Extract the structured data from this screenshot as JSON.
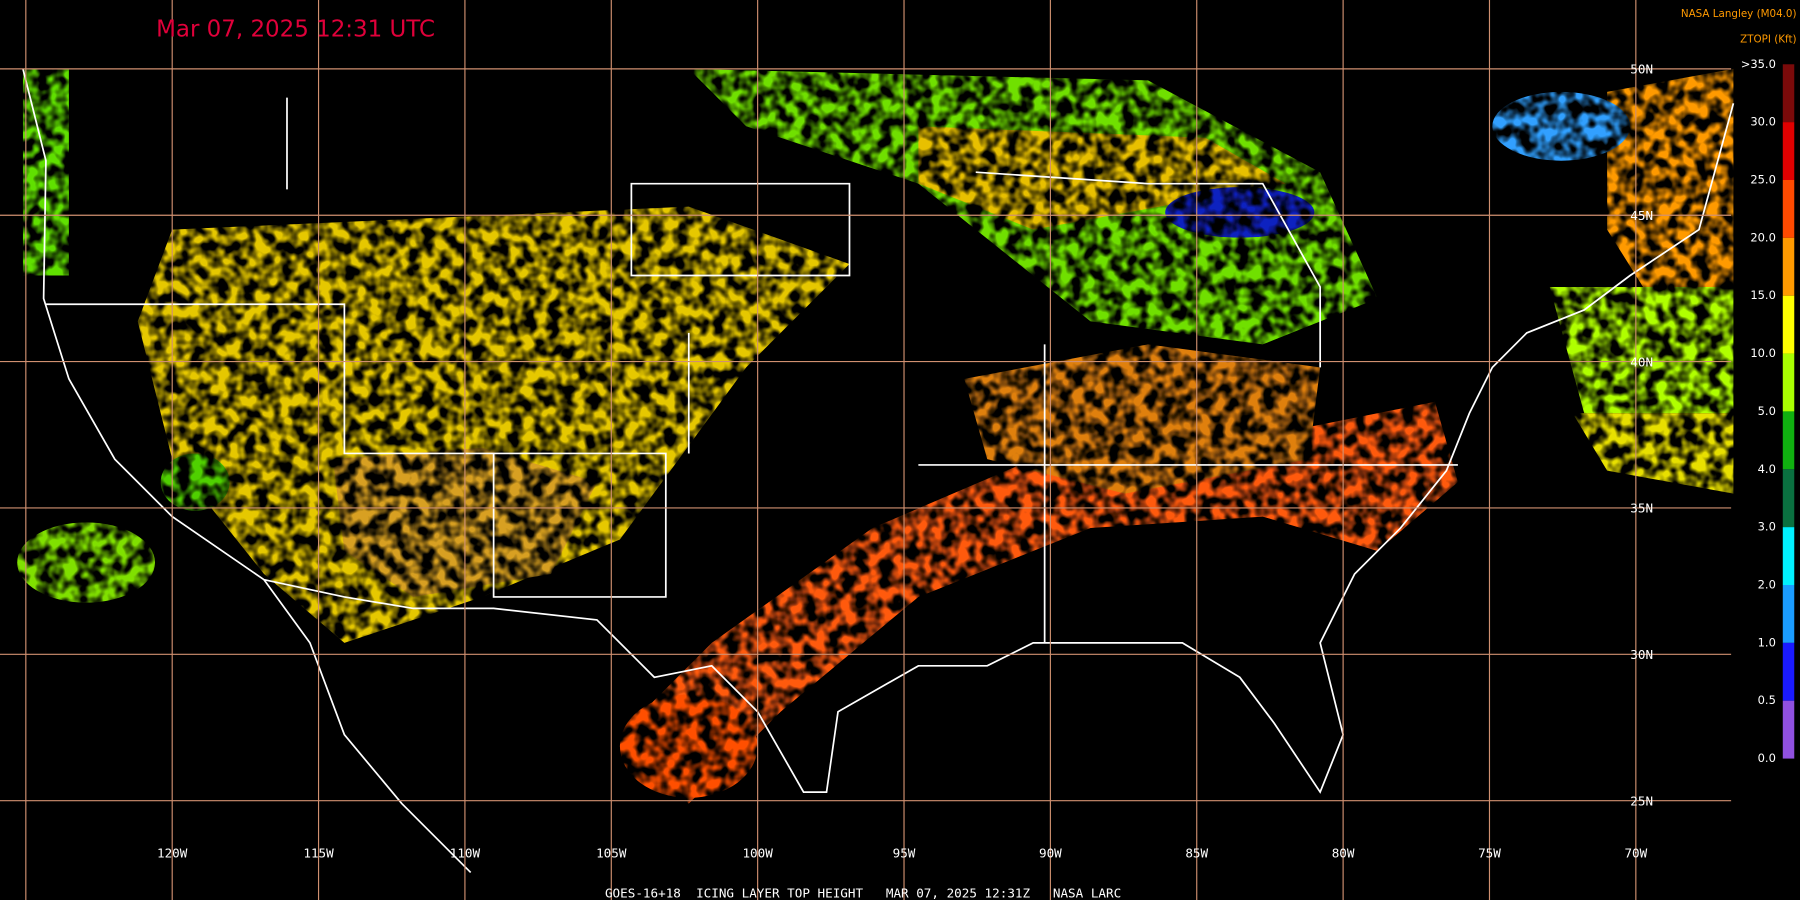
{
  "header": {
    "timestamp": "Mar 07, 2025 12:31 UTC",
    "source": "NASA Langley (M04.0)",
    "product": "ZTOPI (Kft)"
  },
  "footer": "GOES-16+18  ICING LAYER TOP HEIGHT   MAR 07, 2025 12:31Z   NASA LARC",
  "longitudes": [
    "120W",
    "115W",
    "110W",
    "105W",
    "100W",
    "95W",
    "90W",
    "85W",
    "80W",
    "75W",
    "70W"
  ],
  "latitudes": [
    "50N",
    "45N",
    "40N",
    "35N",
    "30N",
    "25N"
  ],
  "legend": {
    "labels": [
      ">35.0",
      "30.0",
      "25.0",
      "20.0",
      "15.0",
      "10.0",
      "5.0",
      "4.0",
      "3.0",
      "2.0",
      "1.0",
      "0.5",
      "0.0"
    ],
    "colors": [
      "#7a0a0a",
      "#e00000",
      "#ff4a00",
      "#ff9a00",
      "#ffff00",
      "#a8ff00",
      "#10b010",
      "#0a7040",
      "#00f0ff",
      "#1a9cff",
      "#1a1aff",
      "#9050e0"
    ]
  }
}
